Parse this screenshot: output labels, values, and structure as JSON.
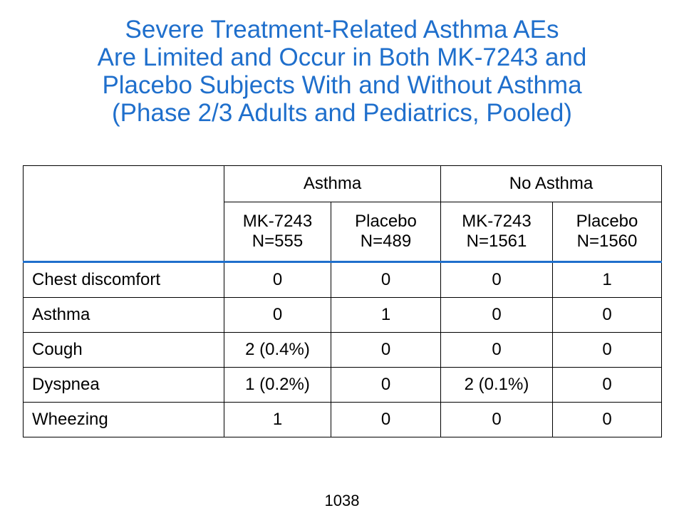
{
  "title_lines": [
    "Severe Treatment-Related Asthma AEs",
    "Are Limited and Occur in Both MK-7243 and",
    "Placebo Subjects With and Without Asthma",
    "(Phase 2/3 Adults and Pediatrics, Pooled)"
  ],
  "table": {
    "groups": [
      "Asthma",
      "No Asthma"
    ],
    "columns": [
      {
        "name": "MK-7243",
        "n": "N=555"
      },
      {
        "name": "Placebo",
        "n": "N=489"
      },
      {
        "name": "MK-7243",
        "n": "N=1561"
      },
      {
        "name": "Placebo",
        "n": "N=1560"
      }
    ],
    "rows": [
      {
        "label": "Chest discomfort",
        "values": [
          "0",
          "0",
          "0",
          "1"
        ]
      },
      {
        "label": "Asthma",
        "values": [
          "0",
          "1",
          "0",
          "0"
        ]
      },
      {
        "label": "Cough",
        "values": [
          "2 (0.4%)",
          "0",
          "0",
          "0"
        ]
      },
      {
        "label": "Dyspnea",
        "values": [
          "1 (0.2%)",
          "0",
          "2 (0.1%)",
          "0"
        ]
      },
      {
        "label": "Wheezing",
        "values": [
          "1",
          "0",
          "0",
          "0"
        ]
      }
    ]
  },
  "page_number": "1038",
  "colors": {
    "title": "#1f6fcc",
    "header_rule": "#1f6fcc",
    "text": "#000000"
  }
}
